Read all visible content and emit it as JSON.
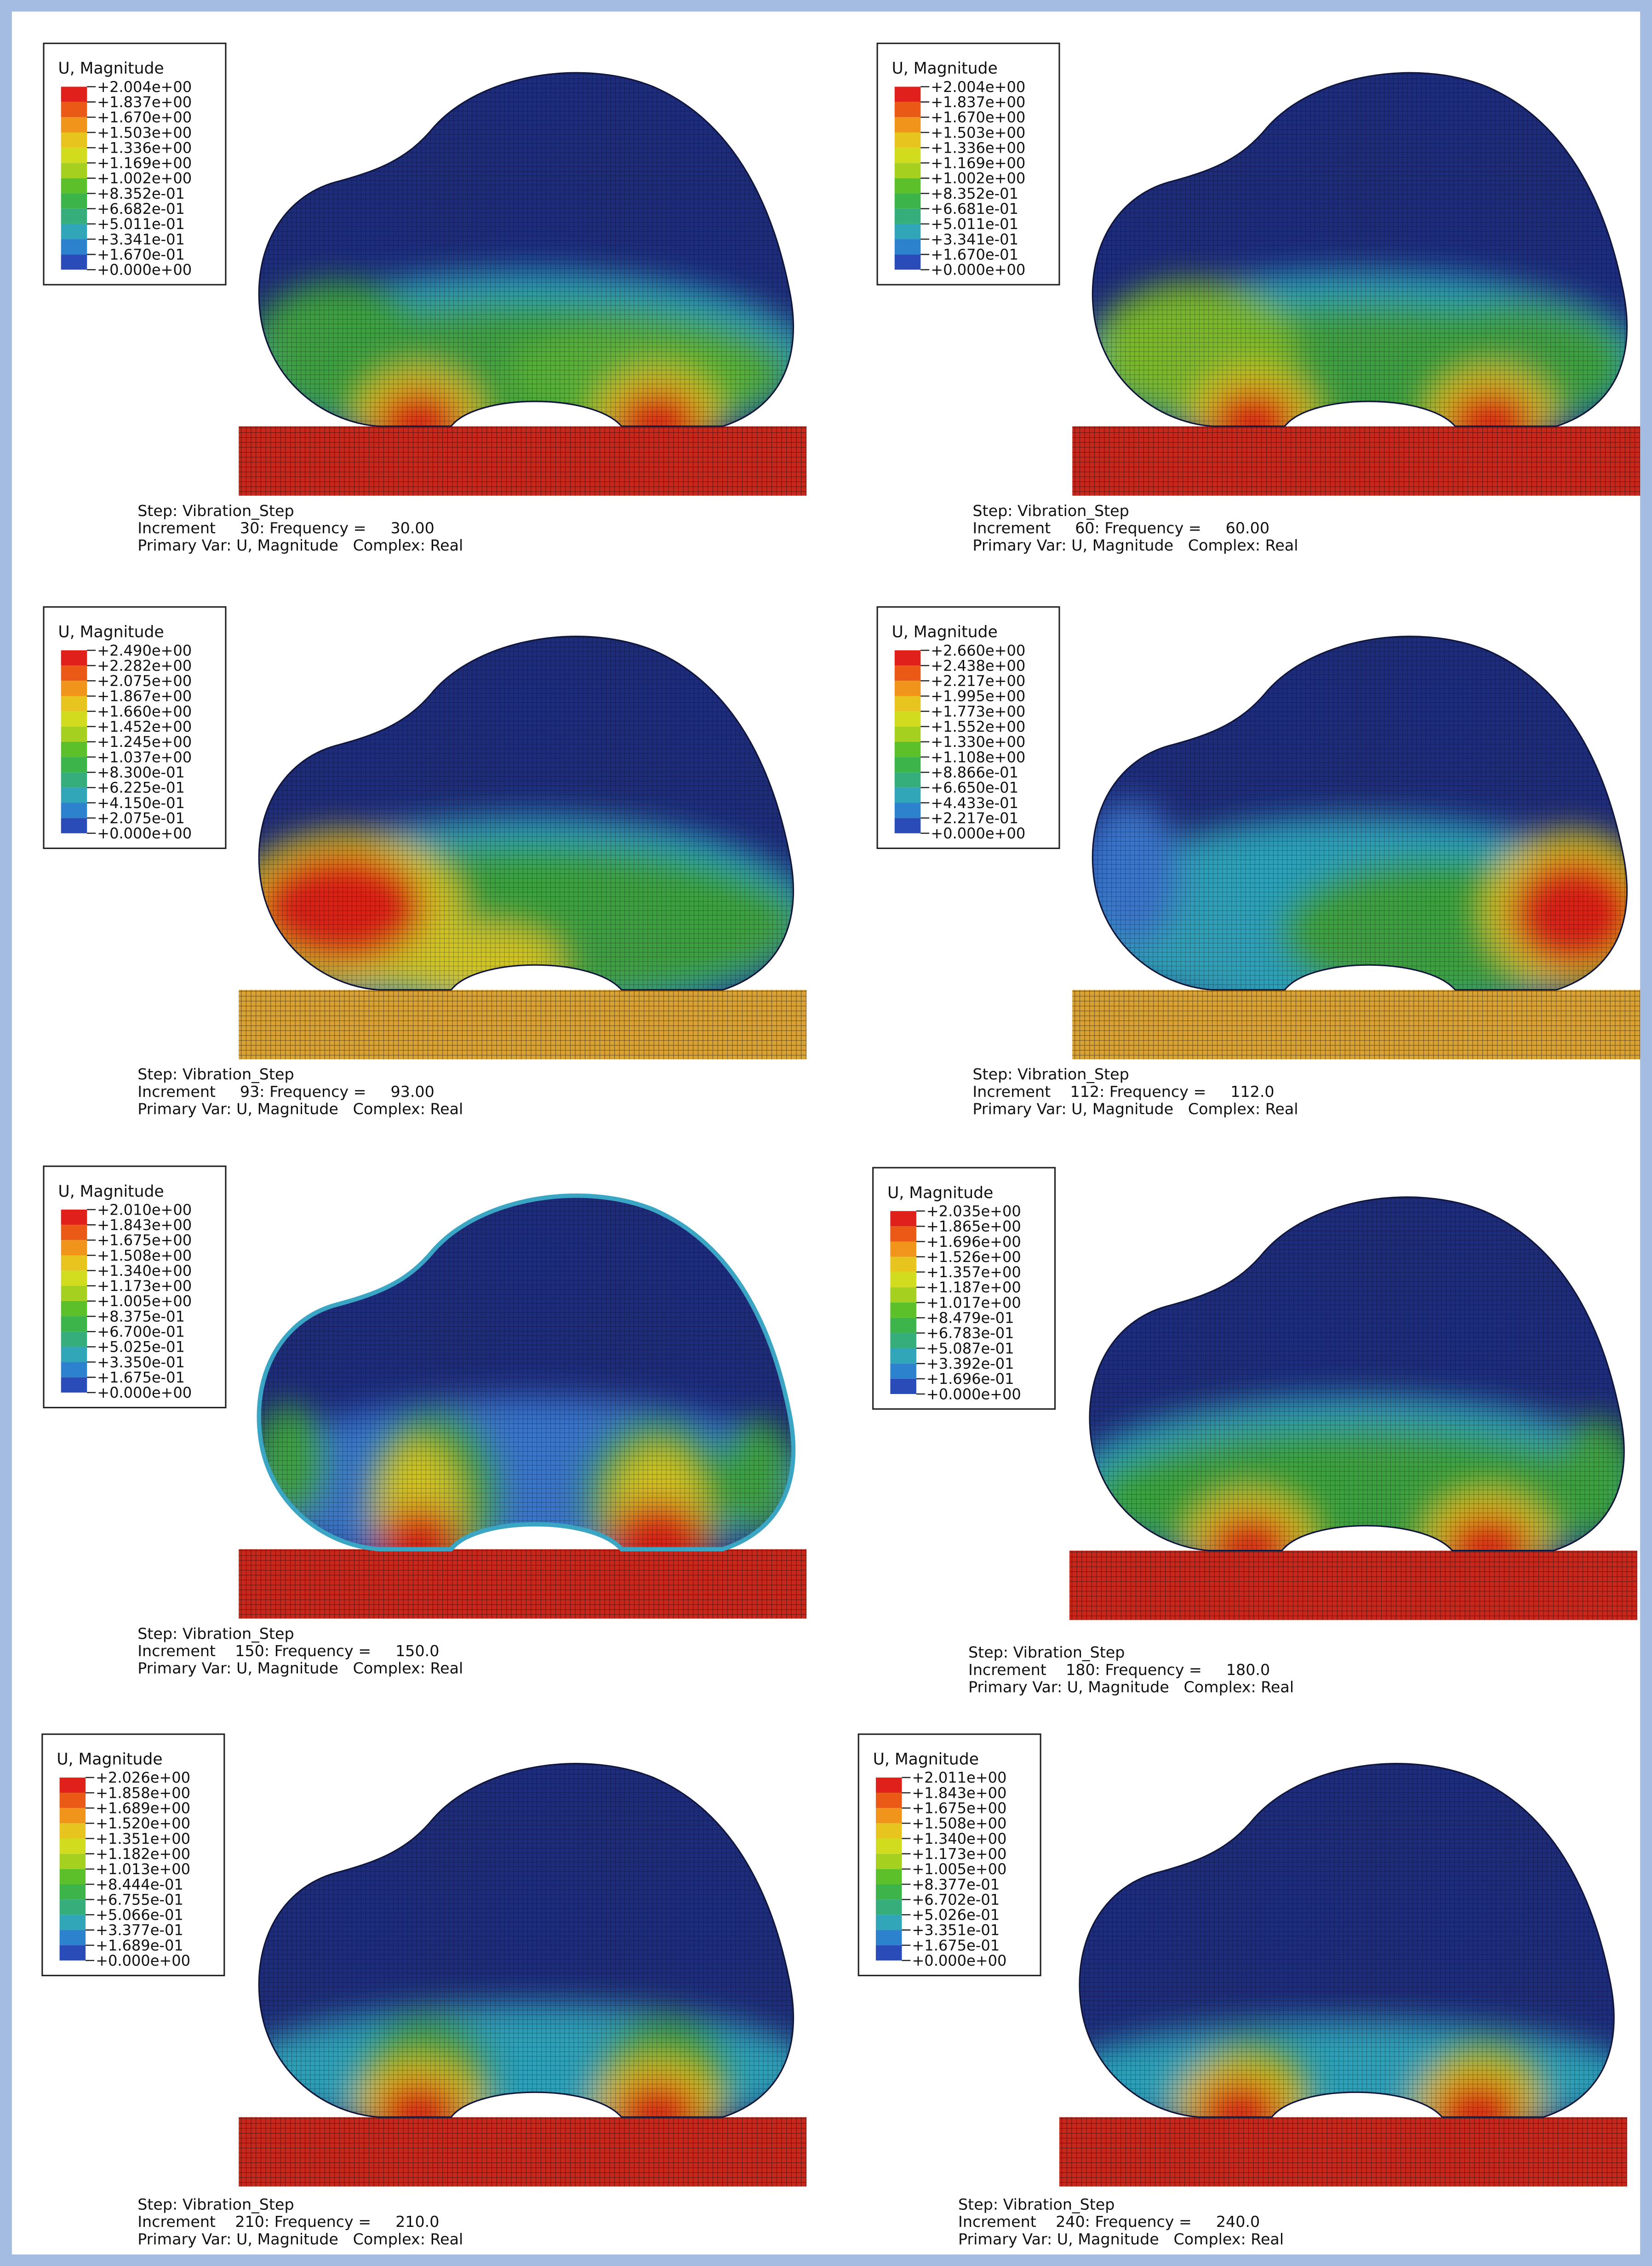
{
  "panels": [
    {
      "legend_title": "U, Magnitude",
      "legend_labels": [
        "+2.004e+00",
        "+1.837e+00",
        "+1.670e+00",
        "+1.503e+00",
        "+1.336e+00",
        "+1.169e+00",
        "+1.002e+00",
        "+8.352e-01",
        "+6.682e-01",
        "+5.011e-01",
        "+3.341e-01",
        "+1.670e-01",
        "+0.000e+00"
      ],
      "step": "Step: Vibration_Step",
      "increment": "Increment     30: Frequency =     30.00",
      "primary_var": "Primary Var: U, Magnitude   Complex: Real"
    },
    {
      "legend_title": "U, Magnitude",
      "legend_labels": [
        "+2.004e+00",
        "+1.837e+00",
        "+1.670e+00",
        "+1.503e+00",
        "+1.336e+00",
        "+1.169e+00",
        "+1.002e+00",
        "+8.352e-01",
        "+6.681e-01",
        "+5.011e-01",
        "+3.341e-01",
        "+1.670e-01",
        "+0.000e+00"
      ],
      "step": "Step: Vibration_Step",
      "increment": "Increment     60: Frequency =     60.00",
      "primary_var": "Primary Var: U, Magnitude   Complex: Real"
    },
    {
      "legend_title": "U, Magnitude",
      "legend_labels": [
        "+2.490e+00",
        "+2.282e+00",
        "+2.075e+00",
        "+1.867e+00",
        "+1.660e+00",
        "+1.452e+00",
        "+1.245e+00",
        "+1.037e+00",
        "+8.300e-01",
        "+6.225e-01",
        "+4.150e-01",
        "+2.075e-01",
        "+0.000e+00"
      ],
      "step": "Step: Vibration_Step",
      "increment": "Increment     93: Frequency =     93.00",
      "primary_var": "Primary Var: U, Magnitude   Complex: Real"
    },
    {
      "legend_title": "U, Magnitude",
      "legend_labels": [
        "+2.660e+00",
        "+2.438e+00",
        "+2.217e+00",
        "+1.995e+00",
        "+1.773e+00",
        "+1.552e+00",
        "+1.330e+00",
        "+1.108e+00",
        "+8.866e-01",
        "+6.650e-01",
        "+4.433e-01",
        "+2.217e-01",
        "+0.000e+00"
      ],
      "step": "Step: Vibration_Step",
      "increment": "Increment    112: Frequency =     112.0",
      "primary_var": "Primary Var: U, Magnitude   Complex: Real"
    },
    {
      "legend_title": "U, Magnitude",
      "legend_labels": [
        "+2.010e+00",
        "+1.843e+00",
        "+1.675e+00",
        "+1.508e+00",
        "+1.340e+00",
        "+1.173e+00",
        "+1.005e+00",
        "+8.375e-01",
        "+6.700e-01",
        "+5.025e-01",
        "+3.350e-01",
        "+1.675e-01",
        "+0.000e+00"
      ],
      "step": "Step: Vibration_Step",
      "increment": "Increment    150: Frequency =     150.0",
      "primary_var": "Primary Var: U, Magnitude   Complex: Real"
    },
    {
      "legend_title": "U, Magnitude",
      "legend_labels": [
        "+2.035e+00",
        "+1.865e+00",
        "+1.696e+00",
        "+1.526e+00",
        "+1.357e+00",
        "+1.187e+00",
        "+1.017e+00",
        "+8.479e-01",
        "+6.783e-01",
        "+5.087e-01",
        "+3.392e-01",
        "+1.696e-01",
        "+0.000e+00"
      ],
      "step": "Step: Vibration_Step",
      "increment": "Increment    180: Frequency =     180.0",
      "primary_var": "Primary Var: U, Magnitude   Complex: Real"
    },
    {
      "legend_title": "U, Magnitude",
      "legend_labels": [
        "+2.026e+00",
        "+1.858e+00",
        "+1.689e+00",
        "+1.520e+00",
        "+1.351e+00",
        "+1.182e+00",
        "+1.013e+00",
        "+8.444e-01",
        "+6.755e-01",
        "+5.066e-01",
        "+3.377e-01",
        "+1.689e-01",
        "+0.000e+00"
      ],
      "step": "Step: Vibration_Step",
      "increment": "Increment    210: Frequency =     210.0",
      "primary_var": "Primary Var: U, Magnitude   Complex: Real"
    },
    {
      "legend_title": "U, Magnitude",
      "legend_labels": [
        "+2.011e+00",
        "+1.843e+00",
        "+1.675e+00",
        "+1.508e+00",
        "+1.340e+00",
        "+1.173e+00",
        "+1.005e+00",
        "+8.377e-01",
        "+6.702e-01",
        "+5.026e-01",
        "+3.351e-01",
        "+1.675e-01",
        "+0.000e+00"
      ],
      "step": "Step: Vibration_Step",
      "increment": "Increment    240: Frequency =     240.0",
      "primary_var": "Primary Var: U, Magnitude   Complex: Real"
    }
  ],
  "legend_colors": [
    "#e0201a",
    "#ea5a16",
    "#f0941c",
    "#e8c41e",
    "#d2dc1e",
    "#a6d020",
    "#5cc02a",
    "#3cb44a",
    "#36ae7c",
    "#30a6b8",
    "#2c82cc",
    "#2a4cb8"
  ]
}
